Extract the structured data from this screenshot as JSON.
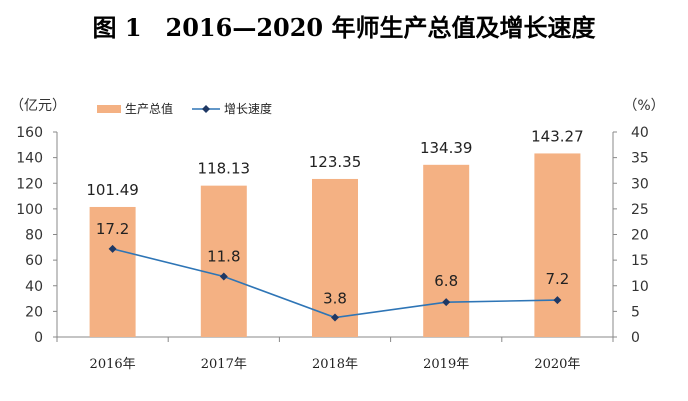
{
  "title": "图 1　2016—2020 年师生产总值及增长速度",
  "chart_data": {
    "type": "bar",
    "categories": [
      "2016年",
      "2017年",
      "2018年",
      "2019年",
      "2020年"
    ],
    "series": [
      {
        "name": "生产总值",
        "type": "bar",
        "axis": "left",
        "values": [
          101.49,
          118.13,
          123.35,
          134.39,
          143.27
        ],
        "color": "#f4b183"
      },
      {
        "name": "增长速度",
        "type": "line",
        "axis": "right",
        "values": [
          17.2,
          11.8,
          3.8,
          6.8,
          7.2
        ],
        "color": "#2e75b6",
        "marker_color": "#1f3864"
      }
    ],
    "left_axis": {
      "unit": "（亿元）",
      "ylim": [
        0,
        160
      ],
      "ticks": [
        "0",
        "20",
        "40",
        "60",
        "80",
        "100",
        "120",
        "140",
        "160"
      ]
    },
    "right_axis": {
      "unit": "（%）",
      "ylim": [
        0,
        40
      ],
      "ticks": [
        "0",
        "5",
        "10",
        "15",
        "20",
        "25",
        "30",
        "35",
        "40"
      ]
    },
    "bar_labels": [
      "101.49",
      "118.13",
      "123.35",
      "134.39",
      "143.27"
    ],
    "line_labels": [
      "17.2",
      "11.8",
      "3.8",
      "6.8",
      "7.2"
    ],
    "legend_position": "top-left",
    "grid": false
  }
}
